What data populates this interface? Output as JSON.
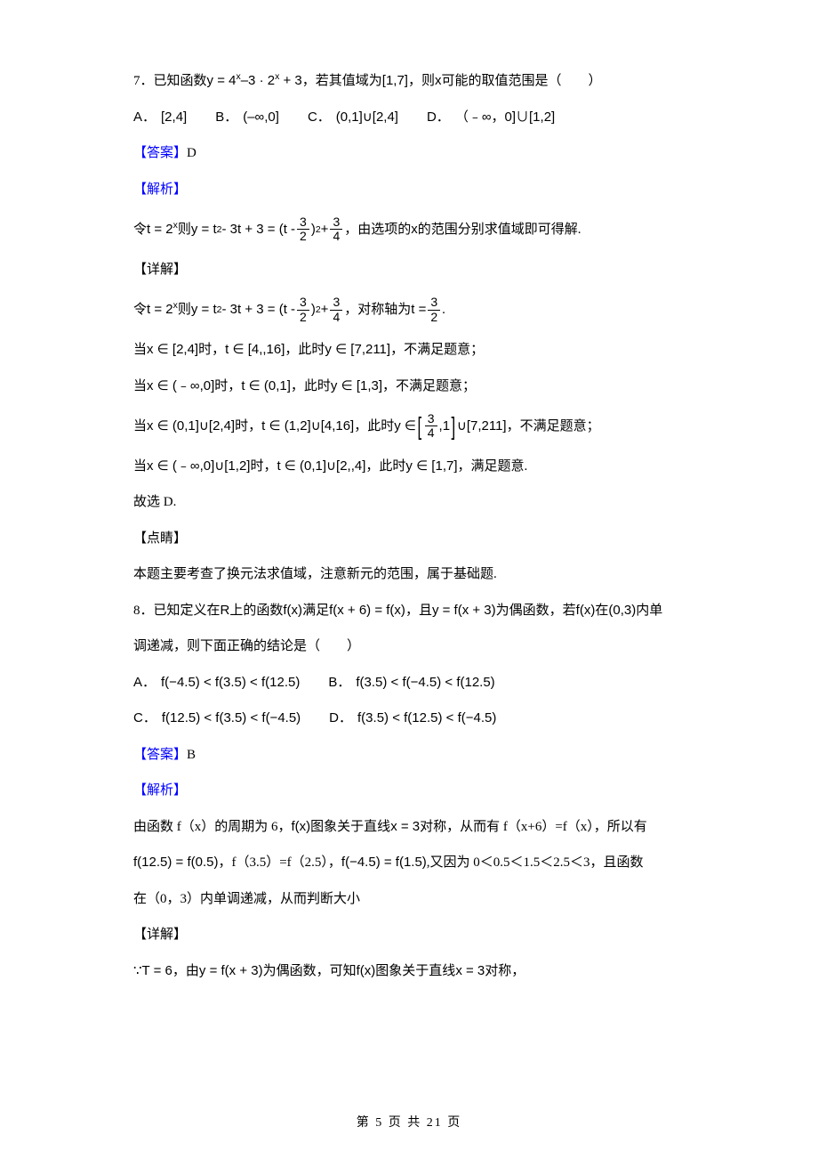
{
  "q7": {
    "num": "7．",
    "stem_p1": "已知函数",
    "stem_f": "y = 4",
    "stem_e1": "x",
    "stem_m": "–3 · 2",
    "stem_e2": "x",
    "stem_p2": " + 3，若其值域为",
    "stem_r": "[1,7]",
    "stem_p3": "，则",
    "stem_v": "x",
    "stem_p4": "可能的取值范围是（　　）",
    "opts": {
      "a": "[2,4]",
      "b": "(–∞,0]",
      "c": "(0,1]∪[2,4]",
      "d": "（﹣∞，0]∪[1,2]"
    },
    "ans_label": "【答案】",
    "ans": "D",
    "analysis_label": "【解析】",
    "sub_p1": "令",
    "sub_t": "t = 2",
    "sub_e": "x",
    "sub_p2": "则",
    "sub_eq_p1": "y = t",
    "sub_eq_e1": "2",
    "sub_eq_p2": " - 3t + 3 = (t - ",
    "sub_eq_p3": ")",
    "sub_eq_e2": "2",
    "sub_eq_p4": " + ",
    "frac32_n": "3",
    "frac32_d": "2",
    "frac34_n": "3",
    "frac34_d": "4",
    "sub_p3": "，由选项的",
    "sub_v": "x",
    "sub_p4": "的范围分别求值域即可得解.",
    "detail_label": "【详解】",
    "det_sym_p1": "，对称轴为",
    "det_sym_t": "t = ",
    "det_sym_dot": ".",
    "case1": {
      "p1": "当",
      "x": "x ∈ [2,4]",
      "p2": "时，",
      "t": "t ∈ [4,,16]",
      "p3": "，此时",
      "y": "y ∈ [7,211]",
      "p4": "，不满足题意；"
    },
    "case2": {
      "p1": "当",
      "x": "x ∈ (﹣∞,0]",
      "p2": "时，",
      "t": "t ∈ (0,1]",
      "p3": "，此时",
      "y": "y ∈ [1,3]",
      "p4": "，不满足题意；"
    },
    "case3": {
      "p1": "当",
      "x": "x ∈ (0,1]∪[2,4]",
      "p2": "时，",
      "t": "t ∈ (1,2]∪[4,16]",
      "p3": "，此时",
      "y_p1": "y ∈ ",
      "y_in1": ",1",
      "y_p2": "∪[7,211]",
      "p4": "，不满足题意；"
    },
    "case4": {
      "p1": "当",
      "x": "x ∈ (﹣∞,0]∪[1,2]",
      "p2": "时，",
      "t": "t ∈ (0,1]∪[2,,4]",
      "p3": "，此时",
      "y": "y ∈ [1,7]",
      "p4": "，满足题意."
    },
    "conclude": "故选 D.",
    "dp_label": "【点睛】",
    "dp_text": "本题主要考查了换元法求值域，注意新元的范围，属于基础题."
  },
  "q8": {
    "num": "8．",
    "stem_p1": "已知定义在",
    "stem_R": "R",
    "stem_p2": "上的函数",
    "stem_f1": "f(x)",
    "stem_p3": "满足",
    "stem_e1": "f(x + 6) = f(x)",
    "stem_p4": "，且",
    "stem_e2": "y = f(x + 3)",
    "stem_p5": "为偶函数，若",
    "stem_f2": "f(x)",
    "stem_p6": "在",
    "stem_r": "(0,3)",
    "stem_p7": "内单",
    "stem_line2": "调递减，则下面正确的结论是（　　）",
    "opts": {
      "a": "f(−4.5) < f(3.5) < f(12.5)",
      "b": "f(3.5) < f(−4.5) < f(12.5)",
      "c": "f(12.5) < f(3.5) < f(−4.5)",
      "d": "f(3.5) < f(12.5) < f(−4.5)"
    },
    "ans_label": "【答案】",
    "ans": "B",
    "analysis_label": "【解析】",
    "ana1_p1": "由函数 f（x）的周期为 6，",
    "ana1_f1": "f(x)",
    "ana1_p2": "图象关于直线",
    "ana1_e1": "x = 3",
    "ana1_p3": "对称，从而有 f（x+6）=f（x），所以有",
    "ana2_e1": "f(12.5) = f(0.5)",
    "ana2_p1": "，f（3.5）=f（2.5），",
    "ana2_e2": "f(−4.5) = f(1.5)",
    "ana2_p2": ",又因为 0＜0.5＜1.5＜2.5＜3，且函数",
    "ana3": "在（0，3）内单调递减，从而判断大小",
    "detail_label": "【详解】",
    "det_p1": "∵",
    "det_e1": "T = 6",
    "det_p2": "，由",
    "det_e2": "y = f(x + 3)",
    "det_p3": "为偶函数，可知",
    "det_f1": "f(x)",
    "det_p4": "图象关于直线",
    "det_e3": "x = 3",
    "det_p5": "对称，"
  },
  "footer": "第 5 页 共 21 页"
}
